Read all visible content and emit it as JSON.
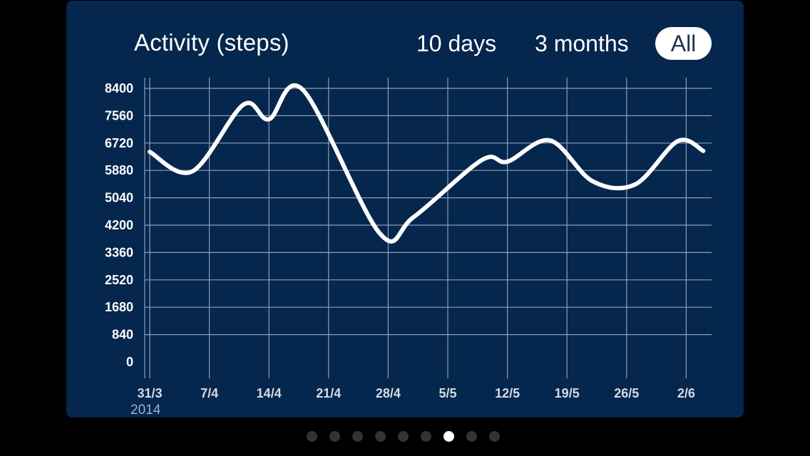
{
  "header": {
    "title": "Activity (steps)",
    "ranges": [
      "10 days",
      "3 months",
      "All"
    ],
    "selected_range": "All"
  },
  "year_label": "2014",
  "pager": {
    "count": 9,
    "active_index": 6
  },
  "colors": {
    "background": "#000000",
    "card": "#05264d",
    "grid": "#8f9fb3",
    "line": "#ffffff"
  },
  "chart_data": {
    "type": "line",
    "title": "Activity (steps)",
    "xlabel": "",
    "ylabel": "",
    "ylim": [
      0,
      8400
    ],
    "yticks": [
      0,
      840,
      1680,
      2520,
      3360,
      4200,
      5040,
      5880,
      6720,
      7560,
      8400
    ],
    "x_tick_labels": [
      "31/3",
      "7/4",
      "14/4",
      "21/4",
      "28/4",
      "5/5",
      "12/5",
      "19/5",
      "26/5",
      "2/6"
    ],
    "x_tick_dates": [
      "2014-03-31",
      "2014-04-07",
      "2014-04-14",
      "2014-04-21",
      "2014-04-28",
      "2014-05-05",
      "2014-05-12",
      "2014-05-19",
      "2014-05-26",
      "2014-06-02"
    ],
    "xlim": [
      "2014-03-31",
      "2014-06-02"
    ],
    "grid": true,
    "legend": false,
    "series": [
      {
        "x": [
          "2014-03-31",
          "2014-04-05",
          "2014-04-11",
          "2014-04-14",
          "2014-04-18",
          "2014-04-27",
          "2014-05-01",
          "2014-05-09",
          "2014-05-12",
          "2014-05-17",
          "2014-05-22",
          "2014-05-27",
          "2014-06-01",
          "2014-06-04"
        ],
        "values": [
          6450,
          5850,
          7900,
          7450,
          8350,
          3950,
          4450,
          6200,
          6150,
          6800,
          5550,
          5450,
          6780,
          6480
        ]
      }
    ]
  }
}
